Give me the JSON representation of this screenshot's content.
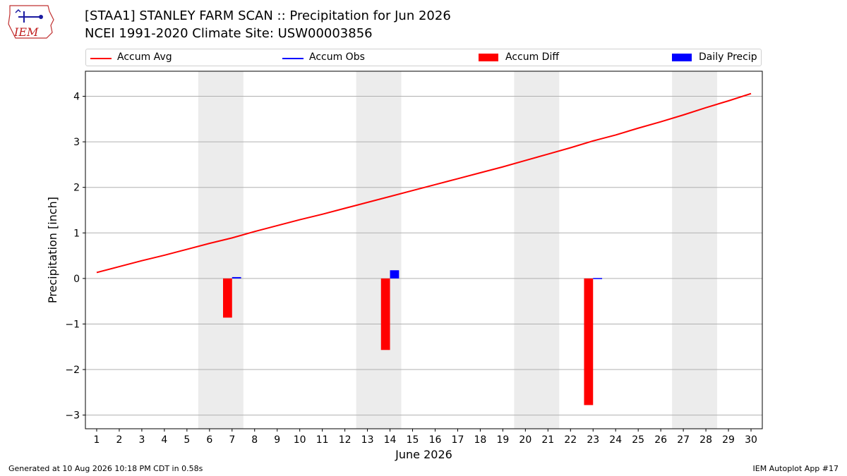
{
  "header": {
    "logo_text": "IEM",
    "title_line1": "[STAA1] STANLEY FARM SCAN :: Precipitation for Jun 2026",
    "title_line2": "NCEI 1991-2020 Climate Site: USW00003856"
  },
  "legend": {
    "items": [
      {
        "label": "Accum Avg",
        "color": "#ff0000",
        "kind": "line"
      },
      {
        "label": "Accum Obs",
        "color": "#0000ff",
        "kind": "line"
      },
      {
        "label": "Accum Diff",
        "color": "#ff0000",
        "kind": "box"
      },
      {
        "label": "Daily Precip",
        "color": "#0000ff",
        "kind": "box"
      }
    ]
  },
  "footer": {
    "left": "Generated at 10 Aug 2026 10:18 PM CDT in 0.58s",
    "right": "IEM Autoplot App #17"
  },
  "chart_data": {
    "type": "bar",
    "title": "[STAA1] STANLEY FARM SCAN :: Precipitation for Jun 2026",
    "subtitle": "NCEI 1991-2020 Climate Site: USW00003856",
    "xlabel": "June 2026",
    "ylabel": "Precipitation [inch]",
    "x": [
      1,
      2,
      3,
      4,
      5,
      6,
      7,
      8,
      9,
      10,
      11,
      12,
      13,
      14,
      15,
      16,
      17,
      18,
      19,
      20,
      21,
      22,
      23,
      24,
      25,
      26,
      27,
      28,
      29,
      30
    ],
    "xlim": [
      0.5,
      30.5
    ],
    "ylim": [
      -3.3,
      4.55
    ],
    "yticks": [
      -3,
      -2,
      -1,
      0,
      1,
      2,
      3,
      4
    ],
    "grid": "horizontal",
    "legend_position": "top",
    "weekend_shading": [
      [
        6,
        7
      ],
      [
        13,
        14
      ],
      [
        20,
        21
      ],
      [
        27,
        28
      ]
    ],
    "series": [
      {
        "name": "Accum Avg",
        "kind": "line",
        "color": "#ff0000",
        "x": [
          1,
          2,
          3,
          4,
          5,
          6,
          7,
          8,
          9,
          10,
          11,
          12,
          13,
          14,
          15,
          16,
          17,
          18,
          19,
          20,
          21,
          22,
          23,
          24,
          25,
          26,
          27,
          28,
          29,
          30
        ],
        "values": [
          0.13,
          0.26,
          0.39,
          0.51,
          0.64,
          0.77,
          0.89,
          1.03,
          1.16,
          1.29,
          1.41,
          1.54,
          1.67,
          1.8,
          1.93,
          2.06,
          2.19,
          2.32,
          2.45,
          2.59,
          2.73,
          2.87,
          3.02,
          3.15,
          3.3,
          3.44,
          3.59,
          3.75,
          3.9,
          4.06
        ]
      },
      {
        "name": "Accum Diff",
        "kind": "bar",
        "color": "#ff0000",
        "x": [
          7,
          14,
          23
        ],
        "values": [
          -0.86,
          -1.57,
          -2.78
        ]
      },
      {
        "name": "Daily Precip",
        "kind": "bar",
        "color": "#0000ff",
        "x": [
          7,
          14,
          23
        ],
        "values": [
          0.03,
          0.18,
          0.01
        ]
      }
    ]
  }
}
